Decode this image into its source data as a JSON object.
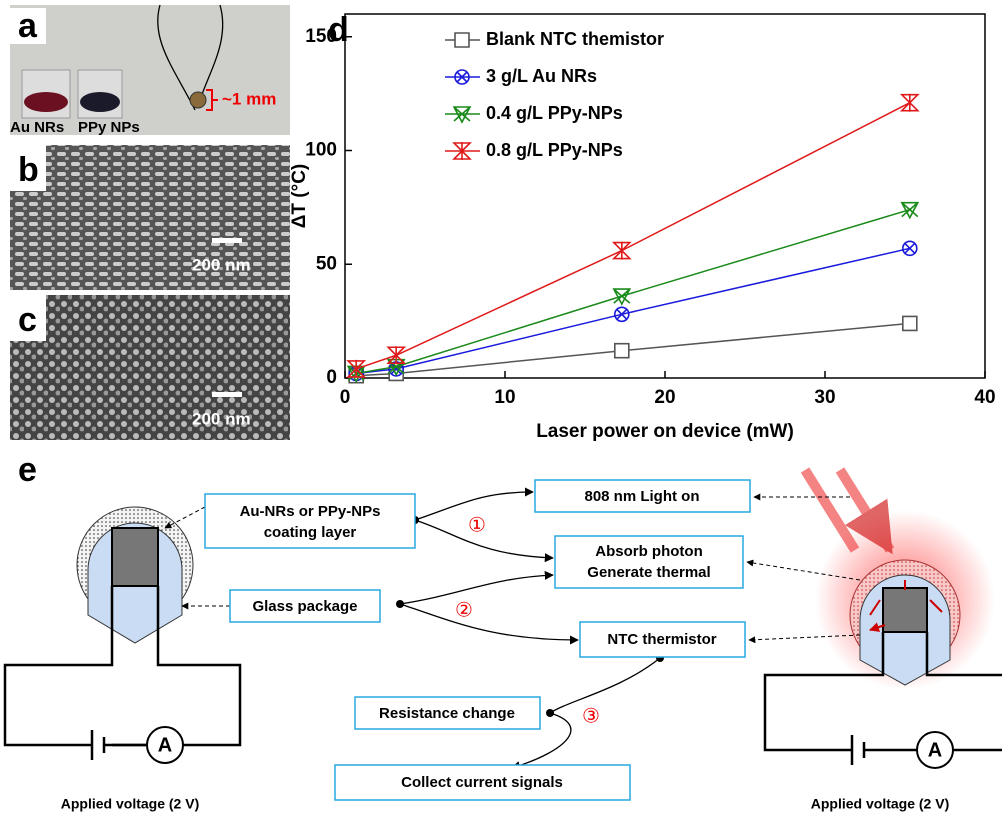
{
  "chart_data": {
    "type": "line",
    "panel": "d",
    "xlabel": "Laser power on device (mW)",
    "ylabel": "ΔT (°C)",
    "x": [
      0.7,
      3.2,
      17.3,
      35.3
    ],
    "series": [
      {
        "name": "Blank NTC themistor",
        "color": "#555555",
        "marker": "square",
        "values": [
          1,
          2,
          12,
          24
        ]
      },
      {
        "name": "3 g/L Au NRs",
        "color": "#1a1adc",
        "marker": "circle-x",
        "values": [
          2,
          4,
          28,
          57
        ]
      },
      {
        "name": "0.4 g/L PPy-NPs",
        "color": "#1a8a1a",
        "marker": "triangle-x",
        "values": [
          2,
          5,
          36,
          74
        ]
      },
      {
        "name": "0.8 g/L PPy-NPs",
        "color": "#e01a1a",
        "marker": "hourglass-x",
        "values": [
          4,
          10,
          56,
          121
        ]
      }
    ],
    "xlim": [
      0,
      40
    ],
    "xticks": [
      0,
      10,
      20,
      30,
      40
    ],
    "ylim": [
      0,
      160
    ],
    "yticks": [
      0,
      50,
      100,
      150
    ],
    "grid": false
  },
  "panel_a": {
    "label": "a",
    "vial1": "Au NRs",
    "vial2": "PPy NPs",
    "size": "~1 mm"
  },
  "panel_b": {
    "label": "b",
    "scale": "200 nm"
  },
  "panel_c": {
    "label": "c",
    "scale": "200 nm"
  },
  "panel_e": {
    "label": "e",
    "coating": [
      "Au-NRs or PPy-NPs",
      "coating layer"
    ],
    "light": "808 nm Light on",
    "absorb": [
      "Absorb photon",
      "Generate thermal"
    ],
    "glass": "Glass package",
    "ntc": "NTC thermistor",
    "resistance": "Resistance change",
    "collect": "Collect current signals",
    "steps": [
      "①",
      "②",
      "③"
    ],
    "meter": "A",
    "voltage": "Applied voltage (2 V)"
  }
}
